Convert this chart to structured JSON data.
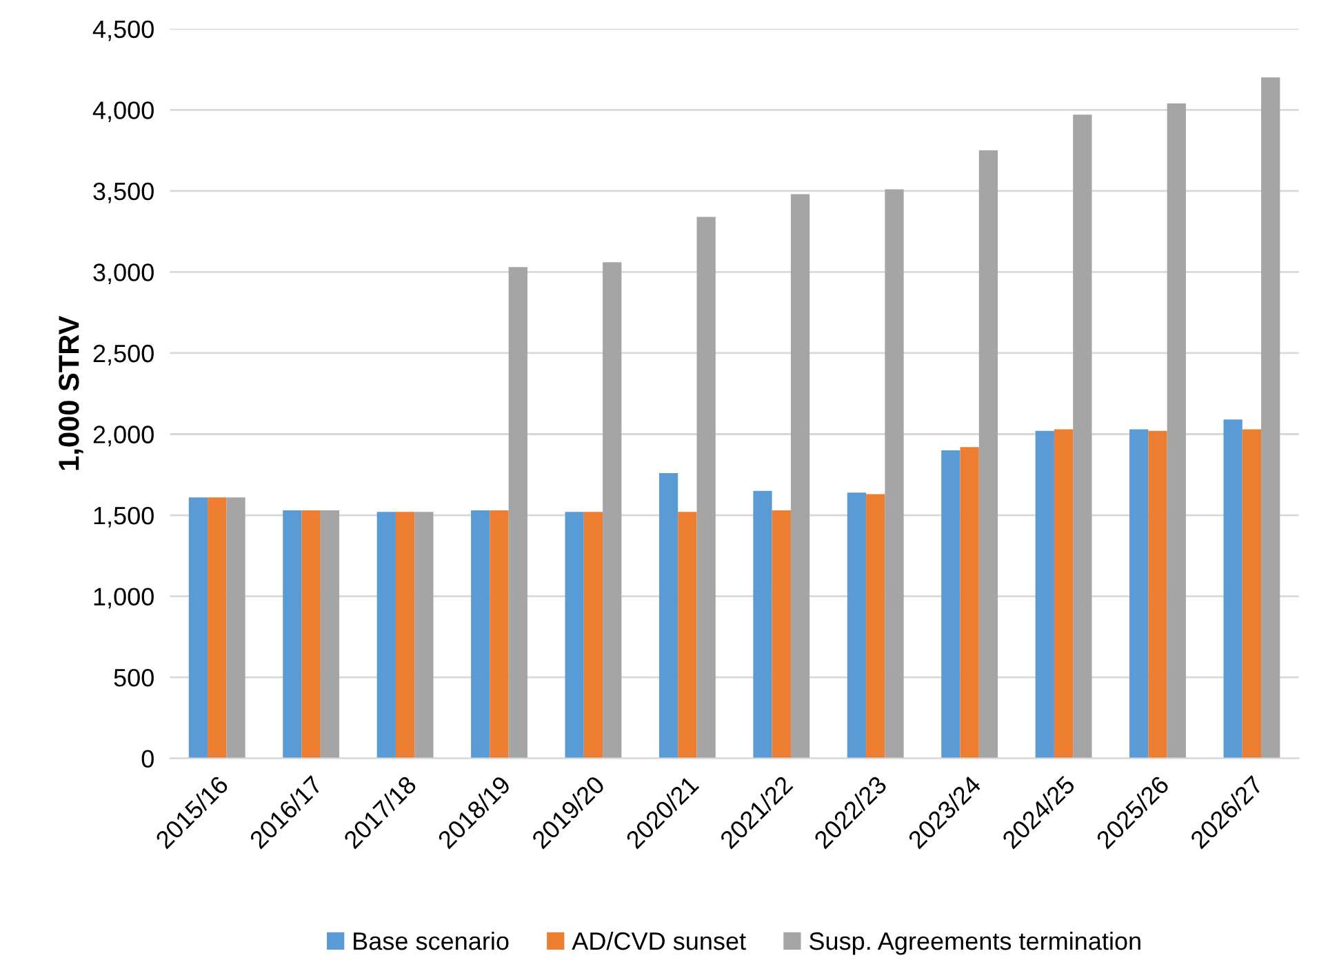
{
  "chart_data": {
    "type": "bar",
    "ylabel": "1,000 STRV",
    "categories": [
      "2015/16",
      "2016/17",
      "2017/18",
      "2018/19",
      "2019/20",
      "2020/21",
      "2021/22",
      "2022/23",
      "2023/24",
      "2024/25",
      "2025/26",
      "2026/27"
    ],
    "series": [
      {
        "name": "Base scenario",
        "color": "#5b9bd5",
        "values": [
          1610,
          1530,
          1520,
          1530,
          1520,
          1760,
          1650,
          1640,
          1900,
          2020,
          2030,
          2090
        ]
      },
      {
        "name": "AD/CVD sunset",
        "color": "#ed7d31",
        "values": [
          1610,
          1530,
          1520,
          1530,
          1520,
          1520,
          1530,
          1630,
          1920,
          2030,
          2020,
          2030
        ]
      },
      {
        "name": "Susp. Agreements termination",
        "color": "#a5a5a5",
        "values": [
          1610,
          1530,
          1520,
          3030,
          3060,
          3340,
          3480,
          3510,
          3750,
          3970,
          4040,
          4200
        ]
      }
    ],
    "ylim": [
      0,
      4500
    ],
    "yticks": [
      {
        "value": 0,
        "label": "0"
      },
      {
        "value": 500,
        "label": "500"
      },
      {
        "value": 1000,
        "label": "1,000"
      },
      {
        "value": 1500,
        "label": "1,500"
      },
      {
        "value": 2000,
        "label": "2,000"
      },
      {
        "value": 2500,
        "label": "2,500"
      },
      {
        "value": 3000,
        "label": "3,000"
      },
      {
        "value": 3500,
        "label": "3,500"
      },
      {
        "value": 4000,
        "label": "4,000"
      },
      {
        "value": 4500,
        "label": "4,500"
      }
    ],
    "grid": "y",
    "legend": "bottom"
  }
}
